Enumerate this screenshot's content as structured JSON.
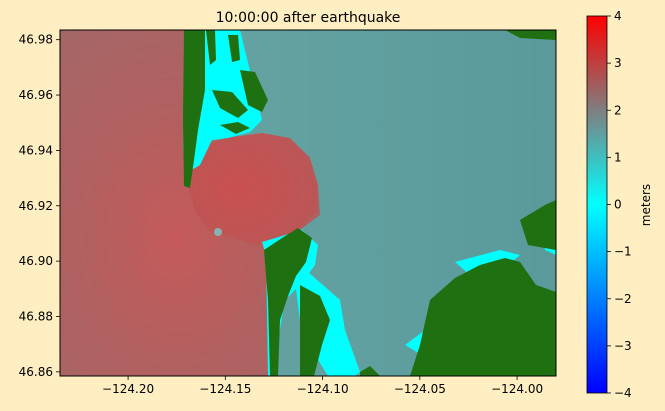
{
  "page": {
    "background": "#ffeec1"
  },
  "chart_data": {
    "type": "heatmap",
    "title": "10:00:00 after earthquake",
    "xlabel": "",
    "ylabel": "",
    "xlim": [
      -124.235,
      -123.98
    ],
    "ylim": [
      46.8585,
      46.9835
    ],
    "x_ticks": [
      -124.2,
      -124.15,
      -124.1,
      -124.05,
      -124.0
    ],
    "x_tick_labels": [
      "−124.20",
      "−124.15",
      "−124.10",
      "−124.05",
      "−124.00"
    ],
    "y_ticks": [
      46.86,
      46.88,
      46.9,
      46.92,
      46.94,
      46.96,
      46.98
    ],
    "y_tick_labels": [
      "46.86",
      "46.88",
      "46.90",
      "46.92",
      "46.94",
      "46.96",
      "46.98"
    ],
    "grid": false,
    "colorbar": {
      "label": "meters",
      "range": [
        -4,
        4
      ],
      "ticks": [
        -4,
        -3,
        -2,
        -1,
        0,
        1,
        2,
        3,
        4
      ],
      "tick_labels": [
        "−4",
        "−3",
        "−2",
        "−1",
        "0",
        "1",
        "2",
        "3",
        "4"
      ],
      "colors": [
        "#0000ff",
        "#00ffff",
        "#7f7f7f",
        "#ff0000"
      ],
      "stops": [
        -4,
        0,
        2,
        4
      ]
    },
    "colors": {
      "land": "#1e7010",
      "sea_offshore": "#ad5f5f",
      "sea_bay": "#c05555",
      "sea_inland": "#63a5a5",
      "shallow": "#00ffff"
    },
    "regions": [
      {
        "name": "offshore",
        "value": 2.6
      },
      {
        "name": "bay",
        "value": 2.9
      },
      {
        "name": "inland-water",
        "value": 1.4
      },
      {
        "name": "shallow-margin",
        "value": 0.3
      }
    ]
  }
}
